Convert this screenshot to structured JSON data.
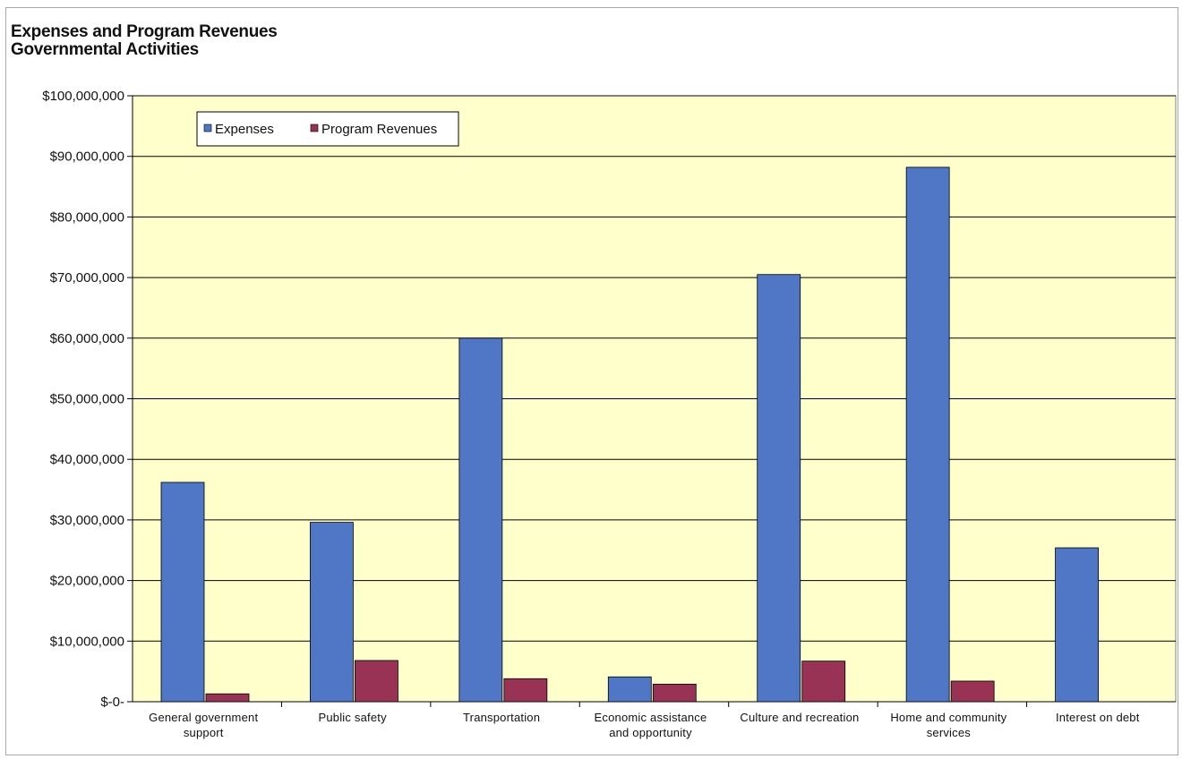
{
  "chart_data": {
    "type": "bar",
    "title": "Expenses and Program Revenues",
    "subtitle": "Governmental Activities",
    "xlabel": "",
    "ylabel": "",
    "ylim": [
      0,
      100000000
    ],
    "y_ticks": [
      0,
      10000000,
      20000000,
      30000000,
      40000000,
      50000000,
      60000000,
      70000000,
      80000000,
      90000000,
      100000000
    ],
    "y_tick_labels": [
      "$-0-",
      "$10,000,000",
      "$20,000,000",
      "$30,000,000",
      "$40,000,000",
      "$50,000,000",
      "$60,000,000",
      "$70,000,000",
      "$80,000,000",
      "$90,000,000",
      "$100,000,000"
    ],
    "categories": [
      [
        "General government",
        "support"
      ],
      [
        "Public safety"
      ],
      [
        "Transportation"
      ],
      [
        "Economic assistance",
        "and opportunity"
      ],
      [
        "Culture and recreation"
      ],
      [
        "Home and community",
        "services"
      ],
      [
        "Interest on debt"
      ]
    ],
    "series": [
      {
        "name": "Expenses",
        "color": "#4f77c6",
        "values": [
          36200000,
          29600000,
          60000000,
          4100000,
          70500000,
          88200000,
          25400000
        ]
      },
      {
        "name": "Program Revenues",
        "color": "#993355",
        "values": [
          1300000,
          6800000,
          3800000,
          2900000,
          6700000,
          3400000,
          0
        ]
      }
    ],
    "grid": true,
    "legend_position": "top-left",
    "plot_background": "#ffffcc"
  }
}
